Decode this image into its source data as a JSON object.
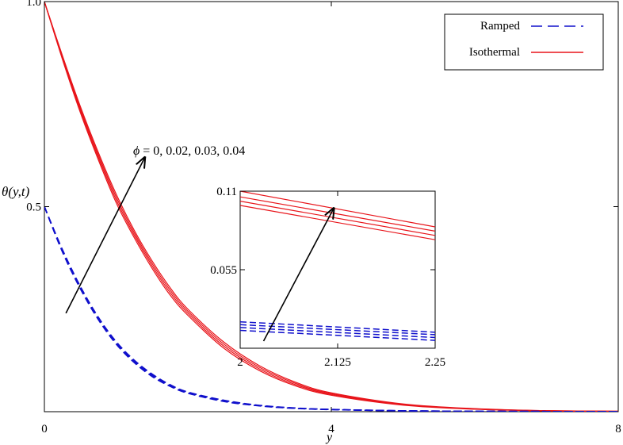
{
  "chart_data": [
    {
      "type": "line",
      "role": "main",
      "xlabel": "y",
      "ylabel": "θ(y,t)",
      "xlim": [
        0,
        8
      ],
      "ylim": [
        0,
        1.0
      ],
      "x_ticks": [
        "0",
        "4",
        "8"
      ],
      "y_ticks": [
        "0.5",
        "1.0"
      ],
      "x_tick_values": [
        0,
        4,
        8
      ],
      "y_tick_values": [
        0.5,
        1.0
      ],
      "grid": false,
      "legend": {
        "placement": "top-right",
        "entries": [
          {
            "label": "Ramped",
            "style": "dashed",
            "color": "#1010cc"
          },
          {
            "label": "Isothermal",
            "style": "solid",
            "color": "#e8141a"
          }
        ]
      },
      "annotation": {
        "symbol": "ϕ",
        "text": " = 0, 0.02, 0.03, 0.04",
        "arrow_from": [
          0.3,
          0.24
        ],
        "arrow_to": [
          1.4,
          0.62
        ]
      },
      "series": [
        {
          "group": "Isothermal",
          "color": "#e8141a",
          "style": "solid",
          "phi": 0,
          "x": [
            0,
            0.25,
            0.5,
            0.75,
            1,
            1.25,
            1.5,
            1.75,
            2,
            2.5,
            3,
            3.5,
            4,
            5,
            6,
            7,
            8
          ],
          "y": [
            1.0,
            0.86,
            0.73,
            0.615,
            0.51,
            0.425,
            0.35,
            0.285,
            0.235,
            0.155,
            0.1,
            0.063,
            0.04,
            0.016,
            0.006,
            0.002,
            0.001
          ]
        },
        {
          "group": "Isothermal",
          "color": "#e8141a",
          "style": "solid",
          "phi": 0.02,
          "x": [
            0,
            0.25,
            0.5,
            0.75,
            1,
            1.25,
            1.5,
            1.75,
            2,
            2.5,
            3,
            3.5,
            4,
            5,
            6,
            7,
            8
          ],
          "y": [
            1.0,
            0.863,
            0.735,
            0.621,
            0.517,
            0.431,
            0.356,
            0.291,
            0.24,
            0.16,
            0.104,
            0.066,
            0.042,
            0.017,
            0.0065,
            0.0022,
            0.001
          ]
        },
        {
          "group": "Isothermal",
          "color": "#e8141a",
          "style": "solid",
          "phi": 0.03,
          "x": [
            0,
            0.25,
            0.5,
            0.75,
            1,
            1.25,
            1.5,
            1.75,
            2,
            2.5,
            3,
            3.5,
            4,
            5,
            6,
            7,
            8
          ],
          "y": [
            1.0,
            0.866,
            0.74,
            0.627,
            0.524,
            0.437,
            0.362,
            0.297,
            0.245,
            0.165,
            0.108,
            0.069,
            0.044,
            0.018,
            0.007,
            0.0024,
            0.001
          ]
        },
        {
          "group": "Isothermal",
          "color": "#e8141a",
          "style": "solid",
          "phi": 0.04,
          "x": [
            0,
            0.25,
            0.5,
            0.75,
            1,
            1.25,
            1.5,
            1.75,
            2,
            2.5,
            3,
            3.5,
            4,
            5,
            6,
            7,
            8
          ],
          "y": [
            1.0,
            0.869,
            0.745,
            0.633,
            0.531,
            0.443,
            0.368,
            0.303,
            0.25,
            0.17,
            0.112,
            0.072,
            0.046,
            0.019,
            0.0075,
            0.0026,
            0.001
          ]
        },
        {
          "group": "Ramped",
          "color": "#1010cc",
          "style": "dashed",
          "phi": 0,
          "x": [
            0,
            0.25,
            0.5,
            0.75,
            1,
            1.25,
            1.5,
            1.75,
            2,
            2.5,
            3,
            3.5,
            4,
            5,
            6,
            7,
            8
          ],
          "y": [
            0.5,
            0.39,
            0.3,
            0.225,
            0.165,
            0.12,
            0.086,
            0.062,
            0.045,
            0.025,
            0.014,
            0.008,
            0.005,
            0.002,
            0.001,
            0.0005,
            0.0003
          ]
        },
        {
          "group": "Ramped",
          "color": "#1010cc",
          "style": "dashed",
          "phi": 0.02,
          "x": [
            0,
            0.25,
            0.5,
            0.75,
            1,
            1.25,
            1.5,
            1.75,
            2,
            2.5,
            3,
            3.5,
            4,
            5,
            6,
            7,
            8
          ],
          "y": [
            0.5,
            0.392,
            0.302,
            0.227,
            0.167,
            0.122,
            0.088,
            0.063,
            0.046,
            0.026,
            0.0145,
            0.0083,
            0.0052,
            0.0021,
            0.001,
            0.0005,
            0.0003
          ]
        },
        {
          "group": "Ramped",
          "color": "#1010cc",
          "style": "dashed",
          "phi": 0.03,
          "x": [
            0,
            0.25,
            0.5,
            0.75,
            1,
            1.25,
            1.5,
            1.75,
            2,
            2.5,
            3,
            3.5,
            4,
            5,
            6,
            7,
            8
          ],
          "y": [
            0.5,
            0.394,
            0.304,
            0.229,
            0.169,
            0.124,
            0.09,
            0.064,
            0.047,
            0.027,
            0.015,
            0.0086,
            0.0054,
            0.0022,
            0.001,
            0.0005,
            0.0003
          ]
        },
        {
          "group": "Ramped",
          "color": "#1010cc",
          "style": "dashed",
          "phi": 0.04,
          "x": [
            0,
            0.25,
            0.5,
            0.75,
            1,
            1.25,
            1.5,
            1.75,
            2,
            2.5,
            3,
            3.5,
            4,
            5,
            6,
            7,
            8
          ],
          "y": [
            0.5,
            0.396,
            0.306,
            0.231,
            0.171,
            0.126,
            0.092,
            0.066,
            0.048,
            0.028,
            0.0155,
            0.009,
            0.0056,
            0.0023,
            0.0011,
            0.0005,
            0.0003
          ]
        }
      ]
    },
    {
      "type": "line",
      "role": "inset",
      "xlim": [
        2,
        2.25
      ],
      "ylim": [
        0,
        0.11
      ],
      "x_ticks": [
        "2",
        "2.125",
        "2.25"
      ],
      "y_ticks": [
        "0.055",
        "0.11"
      ],
      "x_tick_values": [
        2,
        2.125,
        2.25
      ],
      "y_tick_values": [
        0.055,
        0.11
      ],
      "grid": false,
      "arrow_from": [
        2.03,
        0.005
      ],
      "arrow_to": [
        2.12,
        0.098
      ],
      "series": [
        {
          "group": "Isothermal",
          "color": "#e8141a",
          "style": "solid",
          "phi": 0,
          "x": [
            2,
            2.25
          ],
          "y": [
            0.1,
            0.076
          ]
        },
        {
          "group": "Isothermal",
          "color": "#e8141a",
          "style": "solid",
          "phi": 0.02,
          "x": [
            2,
            2.25
          ],
          "y": [
            0.103,
            0.079
          ]
        },
        {
          "group": "Isothermal",
          "color": "#e8141a",
          "style": "solid",
          "phi": 0.03,
          "x": [
            2,
            2.25
          ],
          "y": [
            0.106,
            0.082
          ]
        },
        {
          "group": "Isothermal",
          "color": "#e8141a",
          "style": "solid",
          "phi": 0.04,
          "x": [
            2,
            2.25
          ],
          "y": [
            0.11,
            0.085
          ]
        },
        {
          "group": "Ramped",
          "color": "#1010cc",
          "style": "dashed",
          "phi": 0,
          "x": [
            2,
            2.25
          ],
          "y": [
            0.0125,
            0.0055
          ]
        },
        {
          "group": "Ramped",
          "color": "#1010cc",
          "style": "dashed",
          "phi": 0.02,
          "x": [
            2,
            2.25
          ],
          "y": [
            0.0145,
            0.0075
          ]
        },
        {
          "group": "Ramped",
          "color": "#1010cc",
          "style": "dashed",
          "phi": 0.03,
          "x": [
            2,
            2.25
          ],
          "y": [
            0.0165,
            0.0095
          ]
        },
        {
          "group": "Ramped",
          "color": "#1010cc",
          "style": "dashed",
          "phi": 0.04,
          "x": [
            2,
            2.25
          ],
          "y": [
            0.0185,
            0.0112
          ]
        }
      ]
    }
  ]
}
